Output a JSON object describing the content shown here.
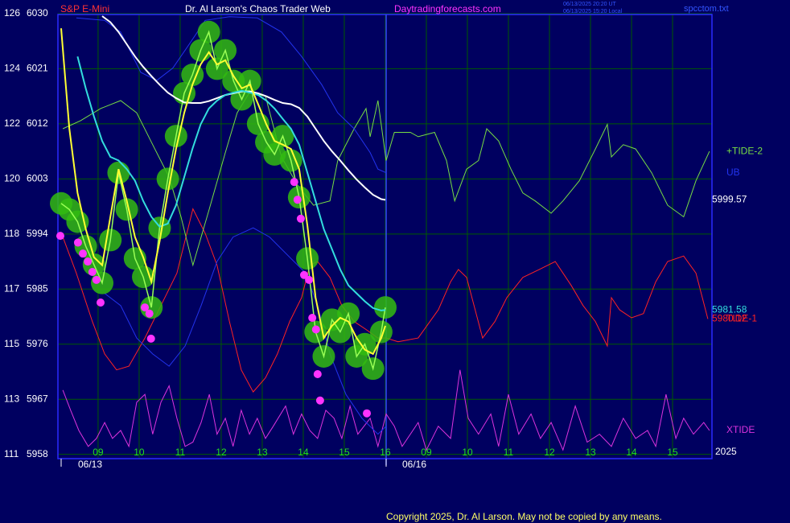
{
  "chart_data": {
    "type": "line",
    "title": "Dr. Al Larson's Chaos Trader Web",
    "symbol": "S&P E-Mini",
    "site": "Daytradingforecasts.com",
    "time_ut": "06/13/2025 20:20 UT",
    "time_local": "06/13/2025 15:20 Local",
    "file": "spcctom.txt",
    "copyright": "Copyright 2025, Dr. Al Larson. May not be copied by any means.",
    "dates": [
      "06/13",
      "06/16"
    ],
    "year": "2025",
    "grid": true,
    "ylim": [
      5957.3,
      6029.6
    ],
    "yticks": [
      6030,
      6021,
      6012,
      6003,
      5994,
      5985,
      5976,
      5967,
      5958
    ],
    "left_labels": [
      "126",
      "124",
      "122",
      "120",
      "118",
      "117",
      "115",
      "113",
      "111"
    ],
    "xlim": [
      0.08,
      15.96
    ],
    "xticks": [
      {
        "value": 1,
        "label": "09"
      },
      {
        "value": 2,
        "label": "10"
      },
      {
        "value": 3,
        "label": "11"
      },
      {
        "value": 4,
        "label": "12"
      },
      {
        "value": 5,
        "label": "13"
      },
      {
        "value": 6,
        "label": "14"
      },
      {
        "value": 7,
        "label": "15"
      },
      {
        "value": 8,
        "label": "16"
      },
      {
        "value": 9,
        "label": "09"
      },
      {
        "value": 10,
        "label": "10"
      },
      {
        "value": 11,
        "label": "11"
      },
      {
        "value": 12,
        "label": "12"
      },
      {
        "value": 13,
        "label": "13"
      },
      {
        "value": 14,
        "label": "14"
      },
      {
        "value": 15,
        "label": "15"
      }
    ],
    "x": [
      0.1,
      0.3,
      0.5,
      0.7,
      0.9,
      1.1,
      1.3,
      1.5,
      1.7,
      1.9,
      2.1,
      2.3,
      2.5,
      2.7,
      2.9,
      3.1,
      3.3,
      3.5,
      3.7,
      3.9,
      4.1,
      4.3,
      4.5,
      4.7,
      4.9,
      5.1,
      5.3,
      5.5,
      5.7,
      5.9,
      6.1,
      6.3,
      6.5,
      6.7,
      6.9,
      7.1,
      7.3,
      7.5,
      7.7,
      7.9,
      8.0
    ],
    "series": [
      {
        "name": "TIDE-1",
        "type": "line",
        "color": "#ff2222",
        "x": [
          0.14,
          0.47,
          0.86,
          1.16,
          1.45,
          1.75,
          2.14,
          2.53,
          2.92,
          3.31,
          3.61,
          3.9,
          4.2,
          4.49,
          4.78,
          5.08,
          5.37,
          5.67,
          5.96,
          6.16,
          6.35,
          6.65,
          6.94,
          7.24,
          7.53,
          7.82,
          8.02,
          8.31,
          8.8,
          9.29,
          9.59,
          9.78,
          9.98,
          10.37,
          10.67,
          10.96,
          11.35,
          11.75,
          12.14,
          12.53,
          12.82,
          13.12,
          13.41,
          13.51,
          13.71,
          14.0,
          14.29,
          14.59,
          14.88,
          15.27,
          15.57,
          15.86
        ],
        "values": [
          5993.5,
          5987.6,
          5979.7,
          5974.4,
          5971.8,
          5972.4,
          5977.0,
          5982.3,
          5987.6,
          5998.1,
          5994.1,
          5988.9,
          5979.7,
          5971.8,
          5968.2,
          5970.5,
          5974.4,
          5979.7,
          5983.6,
          5988.9,
          5989.5,
          5986.9,
          5982.3,
          5979.7,
          5978.4,
          5977.0,
          5977.0,
          5976.4,
          5977.0,
          5981.6,
          5986.2,
          5988.2,
          5986.9,
          5977.0,
          5979.7,
          5983.6,
          5986.9,
          5988.2,
          5989.5,
          5985.6,
          5982.3,
          5979.7,
          5975.7,
          5983.6,
          5981.6,
          5980.3,
          5981.0,
          5986.2,
          5989.5,
          5990.4,
          5987.6,
          5980.12
        ],
        "value_labels": [
          null,
          null,
          null,
          null,
          null,
          null,
          null,
          null,
          null,
          null,
          null,
          null,
          null,
          null,
          null,
          null,
          null,
          null,
          null,
          null,
          null,
          null,
          null,
          null,
          null,
          null,
          null,
          null,
          null,
          null,
          null,
          null,
          null,
          null,
          null,
          null,
          null,
          null,
          null,
          null,
          null,
          null,
          null,
          null,
          null,
          null,
          null,
          null,
          null,
          null,
          null,
          "5980.12"
        ]
      },
      {
        "name": "+TIDE-2",
        "type": "line",
        "color": "#77dd44",
        "x": [
          0.14,
          0.57,
          1.06,
          1.55,
          1.94,
          2.33,
          2.73,
          3.02,
          3.31,
          3.71,
          4.1,
          4.39,
          4.69,
          5.08,
          5.47,
          5.86,
          6.25,
          6.65,
          6.84,
          7.24,
          7.53,
          7.63,
          7.82,
          8.02,
          8.22,
          8.61,
          8.8,
          9.2,
          9.49,
          9.69,
          9.98,
          10.27,
          10.47,
          10.76,
          11.06,
          11.35,
          11.65,
          12.04,
          12.33,
          12.73,
          13.12,
          13.41,
          13.51,
          13.8,
          14.1,
          14.49,
          14.88,
          15.27,
          15.57,
          15.9
        ],
        "values": [
          6011.2,
          6012.5,
          6014.5,
          6015.8,
          6013.8,
          6008.6,
          6003.3,
          5996.8,
          5988.9,
          5998.1,
          6007.3,
          6013.8,
          6017.1,
          6016.5,
          6006.6,
          6002.0,
          5998.7,
          5999.4,
          6006.0,
          6011.2,
          6014.5,
          6009.9,
          6015.8,
          6006.0,
          6010.6,
          6010.6,
          6009.9,
          6010.6,
          6006.0,
          5999.4,
          6004.6,
          6006.0,
          6011.2,
          6009.2,
          6004.6,
          6000.7,
          5999.4,
          5997.4,
          5999.4,
          6002.7,
          6007.9,
          6011.9,
          6006.6,
          6008.6,
          6007.9,
          6004.0,
          5998.7,
          5996.8,
          6002.7,
          6007.5
        ]
      },
      {
        "name": "XTIDE",
        "type": "line",
        "color": "#dd33dd",
        "x": [
          0.14,
          0.33,
          0.53,
          0.76,
          0.96,
          1.16,
          1.35,
          1.55,
          1.75,
          1.94,
          2.14,
          2.33,
          2.53,
          2.73,
          2.92,
          3.12,
          3.31,
          3.51,
          3.71,
          3.9,
          4.1,
          4.29,
          4.49,
          4.69,
          4.88,
          5.08,
          5.27,
          5.57,
          5.76,
          5.96,
          6.16,
          6.35,
          6.55,
          6.75,
          6.94,
          7.14,
          7.33,
          7.63,
          7.82,
          8.02,
          8.22,
          8.41,
          8.61,
          8.8,
          9.0,
          9.29,
          9.59,
          9.82,
          10.02,
          10.27,
          10.57,
          10.76,
          11.0,
          11.25,
          11.55,
          11.78,
          12.04,
          12.33,
          12.63,
          12.92,
          13.22,
          13.51,
          13.8,
          14.1,
          14.39,
          14.59,
          14.84,
          15.08,
          15.27,
          15.51,
          15.76,
          15.9
        ],
        "values": [
          5968.5,
          5965.2,
          5961.9,
          5959.3,
          5960.6,
          5963.2,
          5960.6,
          5961.9,
          5959.3,
          5966.5,
          5967.8,
          5961.3,
          5966.5,
          5969.2,
          5963.9,
          5959.3,
          5960.0,
          5963.2,
          5967.8,
          5961.3,
          5963.9,
          5959.3,
          5965.2,
          5961.3,
          5963.9,
          5960.6,
          5962.6,
          5965.9,
          5961.3,
          5964.6,
          5961.9,
          5960.6,
          5965.2,
          5963.9,
          5960.6,
          5965.9,
          5961.3,
          5963.9,
          5959.3,
          5964.6,
          5962.6,
          5959.3,
          5961.3,
          5963.2,
          5958.7,
          5962.6,
          5960.6,
          5971.8,
          5963.9,
          5961.3,
          5964.6,
          5959.3,
          5967.8,
          5961.3,
          5964.6,
          5960.6,
          5963.2,
          5958.7,
          5965.9,
          5960.0,
          5961.3,
          5959.3,
          5963.9,
          5960.6,
          5961.9,
          5959.3,
          5967.8,
          5960.6,
          5963.9,
          5961.3,
          5963.2,
          5961.9
        ]
      },
      {
        "name": "UB",
        "type": "line",
        "color": "#2233ee",
        "x": [
          0.47,
          1.16,
          1.55,
          2.04,
          2.43,
          2.82,
          3.22,
          3.61,
          4.2,
          4.88,
          5.47,
          5.96,
          6.45,
          6.84,
          7.24,
          7.63,
          7.82,
          8.02
        ],
        "values": [
          6029.3,
          6028.9,
          6027.0,
          6020.4,
          6019.1,
          6021.1,
          6025.0,
          6028.9,
          6029.5,
          6029.3,
          6027.0,
          6023.0,
          6018.4,
          6013.8,
          6011.2,
          6007.3,
          6004.6,
          6004.0
        ]
      },
      {
        "type": "line",
        "color": "#2233ee",
        "x": [
          1.16,
          1.55,
          1.94,
          2.33,
          2.73,
          3.12,
          3.51,
          3.9,
          4.29,
          4.78,
          5.18,
          5.67,
          6.06,
          6.35,
          6.65,
          7.04,
          7.43,
          7.82,
          8.02
        ],
        "values": [
          5984.3,
          5982.3,
          5977.0,
          5974.4,
          5972.4,
          5975.7,
          5982.3,
          5989.5,
          5993.5,
          5995.0,
          5993.5,
          5990.2,
          5987.6,
          5982.3,
          5974.4,
          5967.8,
          5963.9,
          5961.3,
          5962.6
        ]
      },
      {
        "type": "blobs",
        "color": "#33bb11",
        "values": [
          5999,
          5998,
          5996,
          5992,
          5989,
          5986,
          5993,
          6004,
          5998,
          5990,
          5987,
          5982,
          5995,
          6003,
          6010,
          6017,
          6020,
          6024,
          6027,
          6021,
          6024,
          6019,
          6016,
          6019,
          6012,
          6009,
          6007,
          6010,
          6006,
          6000,
          5990,
          5978,
          5974,
          5980,
          5978,
          5981,
          5974,
          5976,
          5972,
          5978,
          5982
        ]
      },
      {
        "type": "line",
        "color": "#ffffff",
        "values": [
          null,
          null,
          null,
          null,
          null,
          6029.6,
          6028.6,
          6027.0,
          6025.0,
          6023.0,
          6021.3,
          6019.8,
          6018.4,
          6017.1,
          6016.2,
          6015.5,
          6015.4,
          6015.4,
          6015.7,
          6016.2,
          6016.7,
          6017.0,
          6017.3,
          6017.3,
          6017.0,
          6016.5,
          6015.9,
          6015.4,
          6015.2,
          6014.6,
          6013.2,
          6011.2,
          6009.2,
          6007.5,
          6006.0,
          6004.4,
          6002.9,
          6001.6,
          6000.4,
          5999.7,
          5999.57
        ],
        "value_labels": [
          null,
          null,
          null,
          null,
          null,
          null,
          null,
          null,
          null,
          null,
          null,
          null,
          null,
          null,
          null,
          null,
          null,
          null,
          null,
          null,
          null,
          null,
          null,
          null,
          null,
          null,
          null,
          null,
          null,
          null,
          null,
          null,
          null,
          null,
          null,
          null,
          null,
          null,
          null,
          null,
          "5999.57"
        ]
      },
      {
        "type": "line",
        "color": "#33dddd",
        "values": [
          null,
          null,
          6023.0,
          6017.8,
          6013.2,
          6009.2,
          6006.6,
          6006.0,
          6004.6,
          6002.7,
          5999.4,
          5996.8,
          5995.2,
          5995.7,
          5998.7,
          6003.3,
          6007.9,
          6011.9,
          6014.5,
          6015.8,
          6016.7,
          6017.1,
          6017.4,
          6017.1,
          6016.7,
          6015.8,
          6014.5,
          6012.8,
          6011.2,
          6008.6,
          6004.0,
          5999.4,
          5994.8,
          5991.5,
          5988.2,
          5985.6,
          5984.3,
          5983.0,
          5981.9,
          5981.5,
          5981.58
        ],
        "value_labels": [
          null,
          null,
          null,
          null,
          null,
          null,
          null,
          null,
          null,
          null,
          null,
          null,
          null,
          null,
          null,
          null,
          null,
          null,
          null,
          null,
          null,
          null,
          null,
          null,
          null,
          null,
          null,
          null,
          null,
          null,
          null,
          null,
          null,
          null,
          null,
          null,
          null,
          null,
          null,
          null,
          "5981.58"
        ]
      },
      {
        "type": "line",
        "color": "#ffff33",
        "values": [
          6027.6,
          6011.2,
          6000.7,
          5994.8,
          5990.2,
          5988.9,
          5996.8,
          6004.6,
          5999.4,
          5993.5,
          5990.2,
          5986.2,
          5992.8,
          6000.7,
          6007.9,
          6013.8,
          6018.4,
          6021.7,
          6023.7,
          6021.7,
          6022.4,
          6019.8,
          6017.8,
          6018.4,
          6015.2,
          6011.9,
          6009.2,
          6008.6,
          6007.9,
          6004.6,
          5995.4,
          5983.6,
          5977.0,
          5979.0,
          5980.3,
          5979.7,
          5977.0,
          5975.1,
          5974.4,
          5977.0,
          5979.0
        ]
      },
      {
        "type": "scatter",
        "color": "#ff33ff",
        "x": [
          0.08,
          0.51,
          0.63,
          0.75,
          0.86,
          0.96,
          1.06,
          2.14,
          2.25,
          2.29,
          5.78,
          5.86,
          5.94,
          6.02,
          6.14,
          6.22,
          6.31,
          6.35,
          6.41,
          7.55
        ],
        "values": [
          5993.7,
          5992.6,
          5990.8,
          5989.5,
          5987.8,
          5986.5,
          5982.8,
          5982.0,
          5981.0,
          5976.9,
          6002.5,
          5999.6,
          5996.5,
          5987.3,
          5986.5,
          5980.3,
          5978.4,
          5971.1,
          5966.8,
          5964.7
        ]
      }
    ]
  }
}
